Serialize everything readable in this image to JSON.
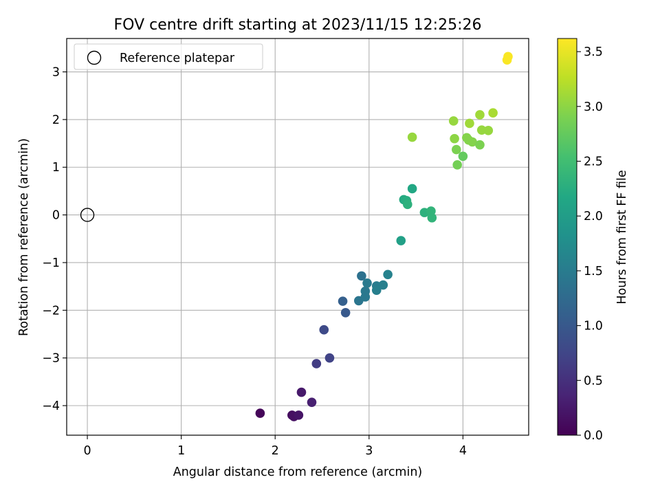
{
  "chart_data": {
    "type": "scatter",
    "title": "FOV centre drift starting at 2023/11/15 12:25:26",
    "xlabel": "Angular distance from reference (arcmin)",
    "ylabel": "Rotation from reference (arcmin)",
    "xlim": [
      -0.22,
      4.7
    ],
    "ylim": [
      -4.62,
      3.7
    ],
    "xticks": [
      0,
      1,
      2,
      3,
      4
    ],
    "yticks": [
      -4,
      -3,
      -2,
      -1,
      0,
      1,
      2,
      3
    ],
    "grid": true,
    "legend": {
      "position": "top-left",
      "label": "Reference platepar"
    },
    "reference_point": {
      "x": 0,
      "y": 0
    },
    "colorbar": {
      "label": "Hours from first FF file",
      "min": 0.0,
      "max": 3.62,
      "ticks": [
        "0.0",
        "0.5",
        "1.0",
        "1.5",
        "2.0",
        "2.5",
        "3.0",
        "3.5"
      ],
      "colormap": "viridis"
    },
    "points": [
      {
        "x": 1.84,
        "y": -4.16,
        "h": 0.05
      },
      {
        "x": 2.18,
        "y": -4.2,
        "h": 0.12
      },
      {
        "x": 2.2,
        "y": -4.23,
        "h": 0.15
      },
      {
        "x": 2.25,
        "y": -4.2,
        "h": 0.2
      },
      {
        "x": 2.28,
        "y": -3.72,
        "h": 0.25
      },
      {
        "x": 2.39,
        "y": -3.93,
        "h": 0.32
      },
      {
        "x": 2.44,
        "y": -3.12,
        "h": 0.65
      },
      {
        "x": 2.52,
        "y": -2.41,
        "h": 0.8
      },
      {
        "x": 2.58,
        "y": -3.0,
        "h": 0.72
      },
      {
        "x": 2.72,
        "y": -1.81,
        "h": 1.1
      },
      {
        "x": 2.75,
        "y": -2.05,
        "h": 1.0
      },
      {
        "x": 2.89,
        "y": -1.8,
        "h": 1.4
      },
      {
        "x": 2.92,
        "y": -1.28,
        "h": 1.35
      },
      {
        "x": 2.96,
        "y": -1.72,
        "h": 1.45
      },
      {
        "x": 2.96,
        "y": -1.6,
        "h": 1.45
      },
      {
        "x": 2.98,
        "y": -1.43,
        "h": 1.48
      },
      {
        "x": 3.08,
        "y": -1.49,
        "h": 1.5
      },
      {
        "x": 3.08,
        "y": -1.58,
        "h": 1.55
      },
      {
        "x": 3.15,
        "y": -1.47,
        "h": 1.55
      },
      {
        "x": 3.2,
        "y": -1.25,
        "h": 1.6
      },
      {
        "x": 3.34,
        "y": -0.54,
        "h": 2.05
      },
      {
        "x": 3.37,
        "y": 0.32,
        "h": 2.2
      },
      {
        "x": 3.4,
        "y": 0.3,
        "h": 2.25
      },
      {
        "x": 3.41,
        "y": 0.22,
        "h": 2.3
      },
      {
        "x": 3.46,
        "y": 0.55,
        "h": 2.15
      },
      {
        "x": 3.59,
        "y": 0.05,
        "h": 2.3
      },
      {
        "x": 3.66,
        "y": 0.08,
        "h": 2.35
      },
      {
        "x": 3.67,
        "y": -0.06,
        "h": 2.35
      },
      {
        "x": 3.46,
        "y": 1.63,
        "h": 3.05
      },
      {
        "x": 3.9,
        "y": 1.97,
        "h": 3.05
      },
      {
        "x": 3.91,
        "y": 1.6,
        "h": 3.0
      },
      {
        "x": 3.93,
        "y": 1.37,
        "h": 2.9
      },
      {
        "x": 3.94,
        "y": 1.05,
        "h": 2.85
      },
      {
        "x": 4.0,
        "y": 1.23,
        "h": 2.75
      },
      {
        "x": 4.04,
        "y": 1.62,
        "h": 2.95
      },
      {
        "x": 4.06,
        "y": 1.57,
        "h": 2.95
      },
      {
        "x": 4.07,
        "y": 1.92,
        "h": 3.1
      },
      {
        "x": 4.1,
        "y": 1.53,
        "h": 2.95
      },
      {
        "x": 4.18,
        "y": 1.47,
        "h": 2.9
      },
      {
        "x": 4.18,
        "y": 2.1,
        "h": 3.1
      },
      {
        "x": 4.2,
        "y": 1.78,
        "h": 3.05
      },
      {
        "x": 4.27,
        "y": 1.77,
        "h": 3.05
      },
      {
        "x": 4.32,
        "y": 2.14,
        "h": 3.15
      },
      {
        "x": 4.47,
        "y": 3.25,
        "h": 3.6
      },
      {
        "x": 4.48,
        "y": 3.32,
        "h": 3.6
      }
    ]
  }
}
